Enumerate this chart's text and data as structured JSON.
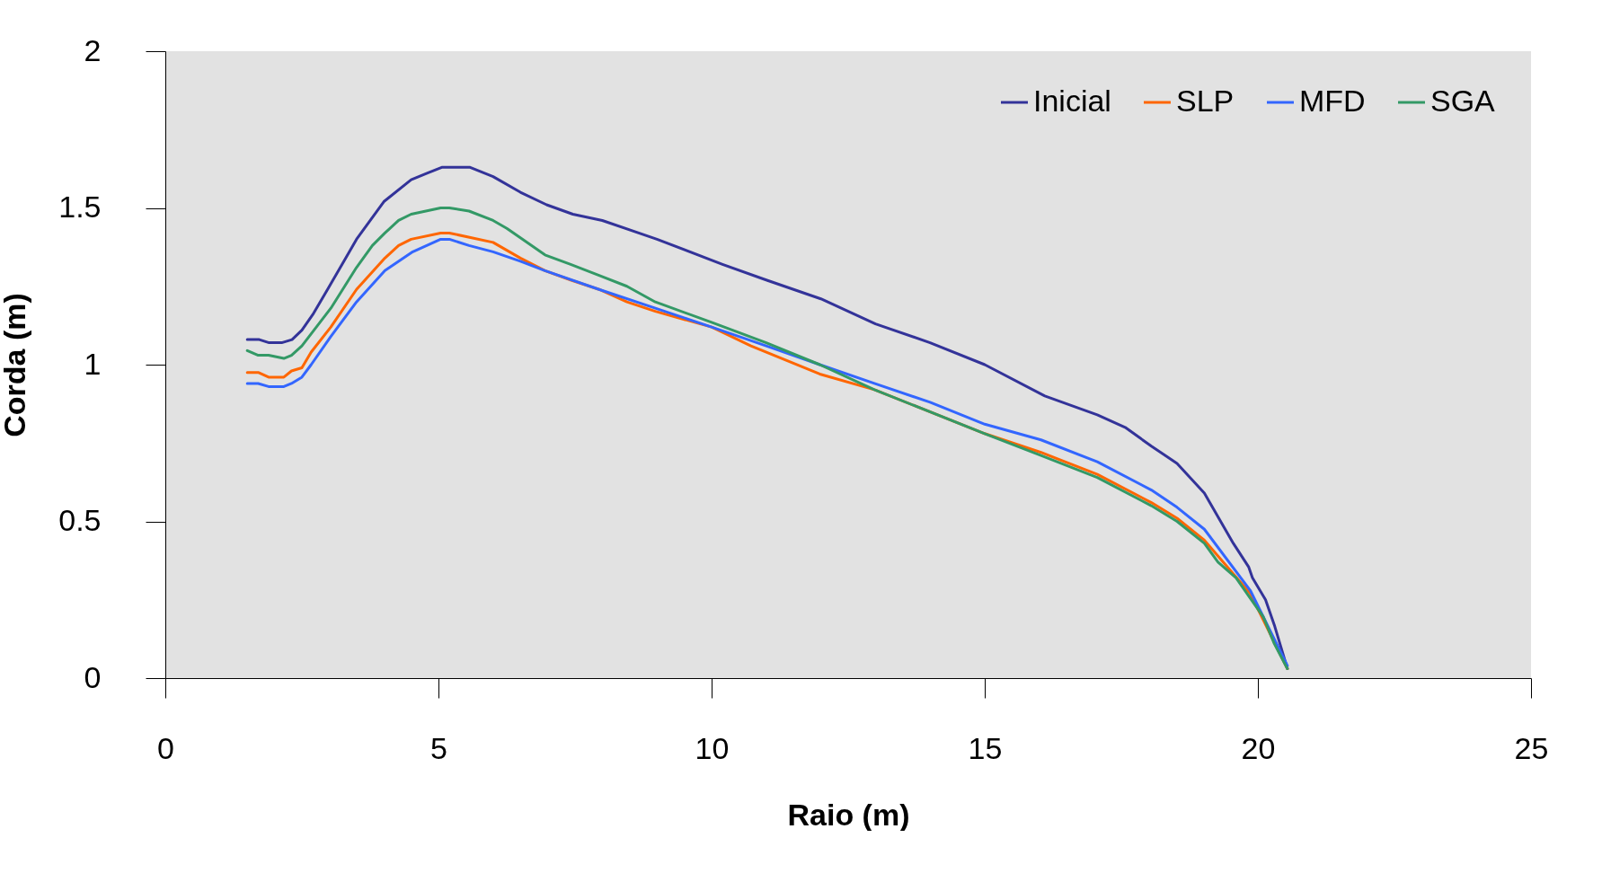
{
  "chart_data": {
    "type": "line",
    "xlabel": "Raio (m)",
    "ylabel": "Corda (m)",
    "xlim": [
      0,
      25
    ],
    "xticks": [
      0,
      5,
      10,
      15,
      20,
      25
    ],
    "ylim": [
      0,
      2
    ],
    "yticks": [
      0,
      0.5,
      1,
      1.5,
      2
    ],
    "grid": false,
    "legend": "top right",
    "marker": "none",
    "line_style": "solid",
    "series": [
      {
        "name": "Inicial",
        "color": "#333399",
        "x": [
          1.5,
          1.72,
          1.9,
          2.13,
          2.32,
          2.5,
          2.7,
          2.97,
          3.27,
          3.5,
          4.0,
          4.5,
          4.78,
          5.07,
          5.57,
          6.0,
          6.5,
          6.98,
          7.46,
          8.0,
          9.0,
          10.2,
          11.0,
          12.0,
          13.0,
          14.0,
          15.0,
          16.1,
          17.06,
          17.57,
          18.05,
          18.52,
          19.02,
          19.55,
          19.83,
          19.9,
          20.14,
          20.3,
          20.54
        ],
        "values": [
          1.08,
          1.08,
          1.07,
          1.07,
          1.08,
          1.11,
          1.16,
          1.24,
          1.33,
          1.4,
          1.52,
          1.59,
          1.61,
          1.63,
          1.63,
          1.6,
          1.55,
          1.51,
          1.48,
          1.46,
          1.4,
          1.32,
          1.27,
          1.21,
          1.13,
          1.07,
          1.0,
          0.9,
          0.84,
          0.8,
          0.74,
          0.685,
          0.59,
          0.43,
          0.355,
          0.32,
          0.25,
          0.17,
          0.03
        ]
      },
      {
        "name": "SLP",
        "color": "#ff6600",
        "x": [
          1.5,
          1.7,
          1.89,
          2.17,
          2.31,
          2.5,
          2.67,
          3.03,
          3.5,
          4.02,
          4.27,
          4.5,
          5.04,
          5.2,
          6.0,
          6.5,
          6.95,
          7.42,
          7.94,
          8.45,
          8.97,
          10.0,
          10.72,
          11.98,
          12.98,
          15.0,
          16.03,
          17.06,
          18.05,
          18.52,
          19.02,
          19.86,
          20.54
        ],
        "values": [
          0.975,
          0.975,
          0.96,
          0.96,
          0.98,
          0.99,
          1.04,
          1.12,
          1.24,
          1.34,
          1.38,
          1.4,
          1.42,
          1.42,
          1.39,
          1.34,
          1.3,
          1.27,
          1.24,
          1.2,
          1.17,
          1.12,
          1.06,
          0.97,
          0.92,
          0.78,
          0.72,
          0.65,
          0.56,
          0.51,
          0.44,
          0.27,
          0.03
        ]
      },
      {
        "name": "MFD",
        "color": "#3366ff",
        "x": [
          1.5,
          1.7,
          1.89,
          2.17,
          2.31,
          2.5,
          2.67,
          3.03,
          3.5,
          4.02,
          4.53,
          5.04,
          5.2,
          5.56,
          6.0,
          6.5,
          6.95,
          7.94,
          8.97,
          10.0,
          11.0,
          11.98,
          12.98,
          14.0,
          15.0,
          16.03,
          17.06,
          18.05,
          18.52,
          19.02,
          19.86,
          20.54
        ],
        "values": [
          0.94,
          0.94,
          0.93,
          0.93,
          0.94,
          0.96,
          1.0,
          1.09,
          1.2,
          1.3,
          1.36,
          1.4,
          1.4,
          1.38,
          1.36,
          1.33,
          1.3,
          1.24,
          1.18,
          1.12,
          1.06,
          1.0,
          0.94,
          0.88,
          0.81,
          0.76,
          0.69,
          0.6,
          0.545,
          0.475,
          0.28,
          0.04
        ]
      },
      {
        "name": "SGA",
        "color": "#339966",
        "x": [
          1.5,
          1.7,
          1.89,
          2.17,
          2.31,
          2.5,
          3.03,
          3.5,
          3.79,
          4.02,
          4.27,
          4.5,
          5.04,
          5.2,
          5.56,
          6.0,
          6.25,
          6.5,
          6.95,
          7.42,
          7.94,
          8.45,
          8.97,
          10.0,
          11.0,
          11.98,
          12.98,
          15.0,
          16.03,
          17.06,
          18.05,
          18.52,
          19.02,
          19.27,
          19.6,
          20.1,
          20.3,
          20.54
        ],
        "values": [
          1.045,
          1.03,
          1.03,
          1.02,
          1.03,
          1.06,
          1.18,
          1.31,
          1.38,
          1.42,
          1.46,
          1.48,
          1.5,
          1.5,
          1.49,
          1.46,
          1.435,
          1.405,
          1.35,
          1.32,
          1.285,
          1.25,
          1.2,
          1.135,
          1.07,
          1.0,
          0.92,
          0.78,
          0.71,
          0.64,
          0.55,
          0.5,
          0.43,
          0.37,
          0.32,
          0.195,
          0.11,
          0.03
        ]
      }
    ]
  }
}
